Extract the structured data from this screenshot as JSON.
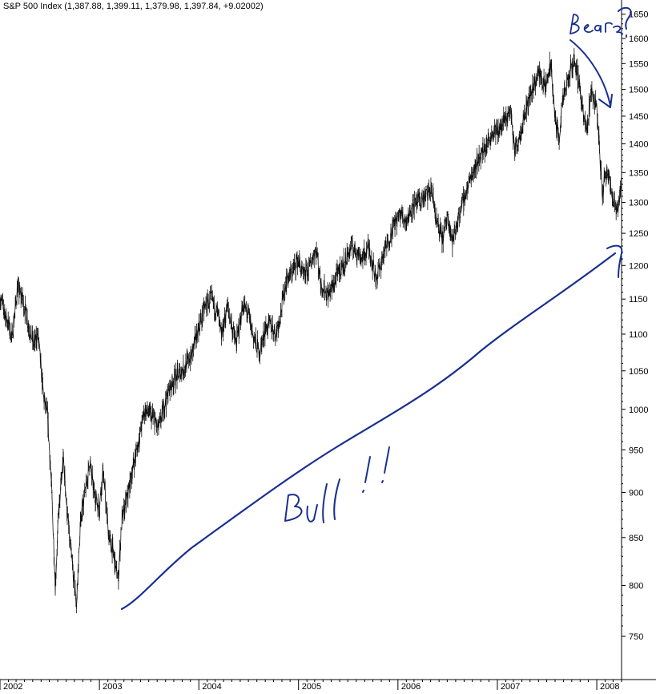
{
  "header": {
    "title": "S&P 500 Index (1,387.88, 1,399.11, 1,379.98, 1,397.84, +9.02002)"
  },
  "chart_data": {
    "type": "line",
    "title": "S&P 500 Index (1,387.88, 1,399.11, 1,379.98, 1,397.84, +9.02002)",
    "xlabel": "",
    "ylabel": "",
    "y_scale": "log",
    "ylim": [
      710,
      1680
    ],
    "xlim": [
      "2002-01-01",
      "2008-04-01"
    ],
    "y_ticks": [
      750,
      800,
      850,
      900,
      950,
      1000,
      1050,
      1100,
      1150,
      1200,
      1250,
      1300,
      1350,
      1400,
      1450,
      1500,
      1550,
      1600,
      1650
    ],
    "x_ticks": [
      {
        "date": "2002-01-01",
        "label": "2002"
      },
      {
        "date": "2003-01-01",
        "label": "2003"
      },
      {
        "date": "2004-01-01",
        "label": "2004"
      },
      {
        "date": "2005-01-01",
        "label": "2005"
      },
      {
        "date": "2006-01-01",
        "label": "2006"
      },
      {
        "date": "2007-01-01",
        "label": "2007"
      },
      {
        "date": "2008-01-01",
        "label": "2008"
      }
    ],
    "grid": false,
    "series": [
      {
        "x": [
          "2002-01-01",
          "2002-01-20",
          "2002-02-15",
          "2002-03-05",
          "2002-03-25",
          "2002-04-15",
          "2002-05-05",
          "2002-05-20",
          "2002-06-10",
          "2002-06-25",
          "2002-07-10",
          "2002-07-23",
          "2002-08-05",
          "2002-08-22",
          "2002-09-05",
          "2002-09-20",
          "2002-10-09",
          "2002-10-25",
          "2002-11-10",
          "2002-11-27",
          "2002-12-10",
          "2002-12-31",
          "2003-01-14",
          "2003-02-05",
          "2003-02-20",
          "2003-03-11",
          "2003-03-25",
          "2003-04-15",
          "2003-05-05",
          "2003-05-25",
          "2003-06-17",
          "2003-07-15",
          "2003-08-05",
          "2003-08-25",
          "2003-09-18",
          "2003-10-15",
          "2003-11-10",
          "2003-12-05",
          "2003-12-31",
          "2004-01-26",
          "2004-02-15",
          "2004-03-10",
          "2004-03-24",
          "2004-04-15",
          "2004-05-17",
          "2004-06-10",
          "2004-06-30",
          "2004-07-20",
          "2004-08-12",
          "2004-08-30",
          "2004-09-20",
          "2004-10-10",
          "2004-10-25",
          "2004-11-15",
          "2004-12-10",
          "2004-12-31",
          "2005-01-20",
          "2005-02-10",
          "2005-03-07",
          "2005-03-25",
          "2005-04-20",
          "2005-05-10",
          "2005-06-01",
          "2005-06-20",
          "2005-07-15",
          "2005-08-05",
          "2005-08-25",
          "2005-09-15",
          "2005-10-13",
          "2005-11-01",
          "2005-11-20",
          "2005-12-15",
          "2006-01-10",
          "2006-02-01",
          "2006-02-20",
          "2006-03-15",
          "2006-04-05",
          "2006-05-05",
          "2006-05-25",
          "2006-06-13",
          "2006-07-05",
          "2006-07-20",
          "2006-08-15",
          "2006-09-10",
          "2006-10-01",
          "2006-10-25",
          "2006-11-20",
          "2006-12-15",
          "2007-01-15",
          "2007-02-20",
          "2007-03-05",
          "2007-03-25",
          "2007-04-20",
          "2007-05-15",
          "2007-06-05",
          "2007-06-25",
          "2007-07-16",
          "2007-08-02",
          "2007-08-15",
          "2007-08-30",
          "2007-09-20",
          "2007-10-09",
          "2007-10-30",
          "2007-11-15",
          "2007-11-26",
          "2007-12-10",
          "2007-12-31",
          "2008-01-10",
          "2008-01-22",
          "2008-02-01",
          "2008-02-15",
          "2008-03-01",
          "2008-03-17",
          "2008-03-31"
        ],
        "y": [
          1150,
          1130,
          1095,
          1165,
          1150,
          1115,
          1085,
          1100,
          1015,
          990,
          900,
          800,
          880,
          940,
          875,
          830,
          780,
          875,
          900,
          935,
          905,
          880,
          925,
          850,
          835,
          805,
          870,
          895,
          930,
          960,
          1000,
          990,
          975,
          1000,
          1030,
          1045,
          1055,
          1070,
          1110,
          1140,
          1150,
          1130,
          1095,
          1140,
          1085,
          1140,
          1130,
          1095,
          1075,
          1105,
          1115,
          1100,
          1125,
          1175,
          1190,
          1210,
          1180,
          1200,
          1225,
          1170,
          1155,
          1170,
          1195,
          1205,
          1230,
          1220,
          1210,
          1230,
          1180,
          1205,
          1230,
          1260,
          1280,
          1270,
          1290,
          1300,
          1305,
          1320,
          1265,
          1240,
          1280,
          1235,
          1280,
          1320,
          1350,
          1375,
          1395,
          1420,
          1430,
          1460,
          1385,
          1420,
          1470,
          1510,
          1535,
          1500,
          1550,
          1440,
          1410,
          1480,
          1520,
          1560,
          1510,
          1440,
          1420,
          1500,
          1470,
          1400,
          1310,
          1350,
          1350,
          1300,
          1290,
          1330
        ]
      }
    ],
    "annotations": [
      {
        "text": "Bull !!",
        "style": "handwritten"
      },
      {
        "text": "Bear?",
        "style": "handwritten"
      },
      {
        "text": "?",
        "style": "handwritten"
      }
    ]
  },
  "colors": {
    "price": "#111111",
    "annotation": "#1a2f8f",
    "axis": "#000000"
  }
}
